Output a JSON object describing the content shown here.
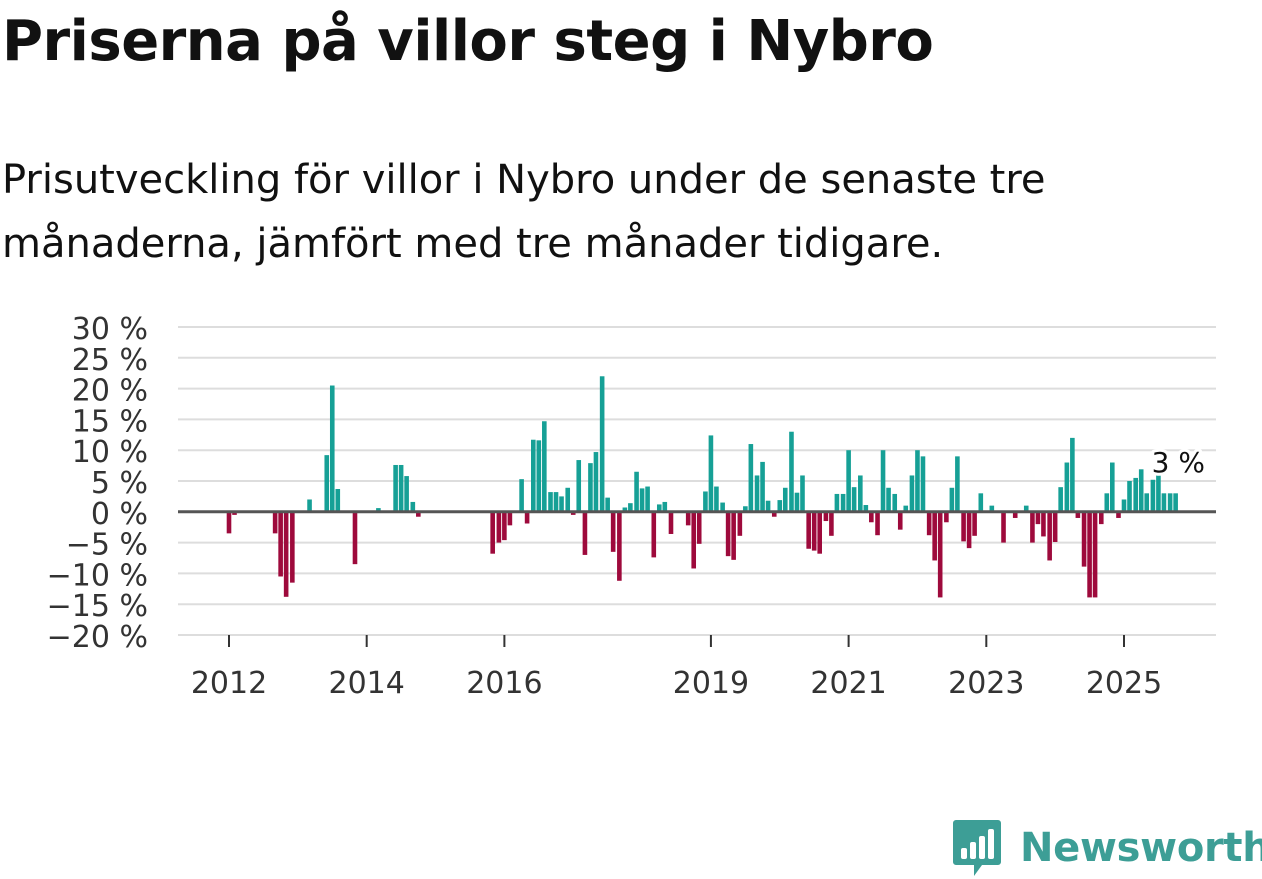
{
  "header": {
    "title": "Priserna på villor steg i Nybro",
    "subtitle": "Prisutveckling för villor i Nybro under de senaste tre månaderna, jämfört med tre månader tidigare."
  },
  "brand": {
    "name": "Newsworthy",
    "icon": "newsworthy-logo-icon",
    "color": "#3d9e96"
  },
  "colors": {
    "positive": "#16a096",
    "negative": "#9e0a3c",
    "grid": "#dddddd",
    "zero": "#555555"
  },
  "chart_data": {
    "type": "bar",
    "title": "Priserna på villor steg i Nybro",
    "xlabel": "",
    "ylabel": "",
    "ylim": [
      -20,
      30
    ],
    "y_ticks": [
      30,
      25,
      20,
      15,
      10,
      5,
      0,
      -5,
      -10,
      -15,
      -20
    ],
    "y_tick_labels": [
      "30 %",
      "25 %",
      "20 %",
      "15 %",
      "10 %",
      "5 %",
      "0 %",
      "−5 %",
      "−10 %",
      "−15 %",
      "−20 %"
    ],
    "x_tick_labels": [
      "2012",
      "2014",
      "2016",
      "2019",
      "2021",
      "2023",
      "2025"
    ],
    "x_tick_values": [
      2012.0,
      2014.0,
      2016.0,
      2019.0,
      2021.0,
      2023.0,
      2025.0
    ],
    "annotation": {
      "text": "3 %",
      "x": 2025.75,
      "value": 3
    },
    "x": [
      2012.0,
      2012.08,
      2012.67,
      2012.75,
      2012.83,
      2012.92,
      2013.17,
      2013.42,
      2013.5,
      2013.58,
      2013.83,
      2014.17,
      2014.42,
      2014.5,
      2014.58,
      2014.67,
      2014.75,
      2015.83,
      2015.92,
      2016.0,
      2016.08,
      2016.25,
      2016.33,
      2016.42,
      2016.5,
      2016.58,
      2016.67,
      2016.75,
      2016.83,
      2016.92,
      2017.0,
      2017.08,
      2017.17,
      2017.25,
      2017.33,
      2017.42,
      2017.5,
      2017.58,
      2017.67,
      2017.75,
      2017.83,
      2017.92,
      2018.0,
      2018.08,
      2018.17,
      2018.25,
      2018.33,
      2018.42,
      2018.67,
      2018.75,
      2018.83,
      2018.92,
      2019.0,
      2019.08,
      2019.17,
      2019.25,
      2019.33,
      2019.42,
      2019.5,
      2019.58,
      2019.67,
      2019.75,
      2019.83,
      2019.92,
      2020.0,
      2020.08,
      2020.17,
      2020.25,
      2020.33,
      2020.42,
      2020.5,
      2020.58,
      2020.67,
      2020.75,
      2020.83,
      2020.92,
      2021.0,
      2021.08,
      2021.17,
      2021.25,
      2021.33,
      2021.42,
      2021.5,
      2021.58,
      2021.67,
      2021.75,
      2021.83,
      2021.92,
      2022.0,
      2022.08,
      2022.17,
      2022.25,
      2022.33,
      2022.42,
      2022.5,
      2022.58,
      2022.67,
      2022.75,
      2022.83,
      2022.92,
      2023.08,
      2023.25,
      2023.42,
      2023.58,
      2023.67,
      2023.75,
      2023.83,
      2023.92,
      2024.0,
      2024.08,
      2024.17,
      2024.25,
      2024.33,
      2024.42,
      2024.5,
      2024.58,
      2024.67,
      2024.75,
      2024.83,
      2024.92,
      2025.0,
      2025.08,
      2025.17,
      2025.25,
      2025.33,
      2025.42,
      2025.5,
      2025.58,
      2025.67,
      2025.75
    ],
    "values": [
      -3.5,
      -0.5,
      -3.5,
      -10.5,
      -13.8,
      -11.5,
      2.0,
      9.2,
      20.5,
      3.7,
      -8.5,
      0.6,
      7.6,
      7.6,
      5.8,
      1.6,
      -0.8,
      -6.8,
      -5.0,
      -4.6,
      -2.2,
      5.3,
      -1.9,
      11.7,
      11.6,
      14.7,
      3.2,
      3.2,
      2.5,
      3.9,
      -0.5,
      8.4,
      -7.0,
      7.9,
      9.7,
      22.0,
      2.3,
      -6.5,
      -11.2,
      0.7,
      1.4,
      6.5,
      3.8,
      4.1,
      -7.4,
      1.2,
      1.6,
      -3.6,
      -2.2,
      -9.2,
      -5.2,
      3.3,
      12.4,
      4.1,
      1.5,
      -7.2,
      -7.8,
      -3.9,
      0.9,
      11.0,
      5.9,
      8.1,
      1.8,
      -0.8,
      1.9,
      3.9,
      13.0,
      3.1,
      5.9,
      -6.0,
      -6.3,
      -6.8,
      -1.5,
      -3.9,
      2.9,
      2.9,
      10.0,
      4.0,
      5.9,
      1.1,
      -1.7,
      -3.8,
      10.0,
      3.9,
      2.9,
      -2.9,
      1.0,
      5.9,
      10.0,
      9.0,
      -3.8,
      -7.9,
      -13.9,
      -1.7,
      3.9,
      9.0,
      -4.8,
      -5.9,
      -3.9,
      3.0,
      1.0,
      -5.0,
      -1.0,
      1.0,
      -5.0,
      -2.0,
      -4.0,
      -7.9,
      -4.9,
      4.0,
      8.0,
      12.0,
      -1.0,
      -8.9,
      -13.9,
      -13.9,
      -2.0,
      3.0,
      8.0,
      -1.0,
      2.0,
      5.0,
      5.5,
      6.9,
      3.0,
      5.2,
      6.8,
      3.0,
      3.0,
      3.0
    ]
  }
}
